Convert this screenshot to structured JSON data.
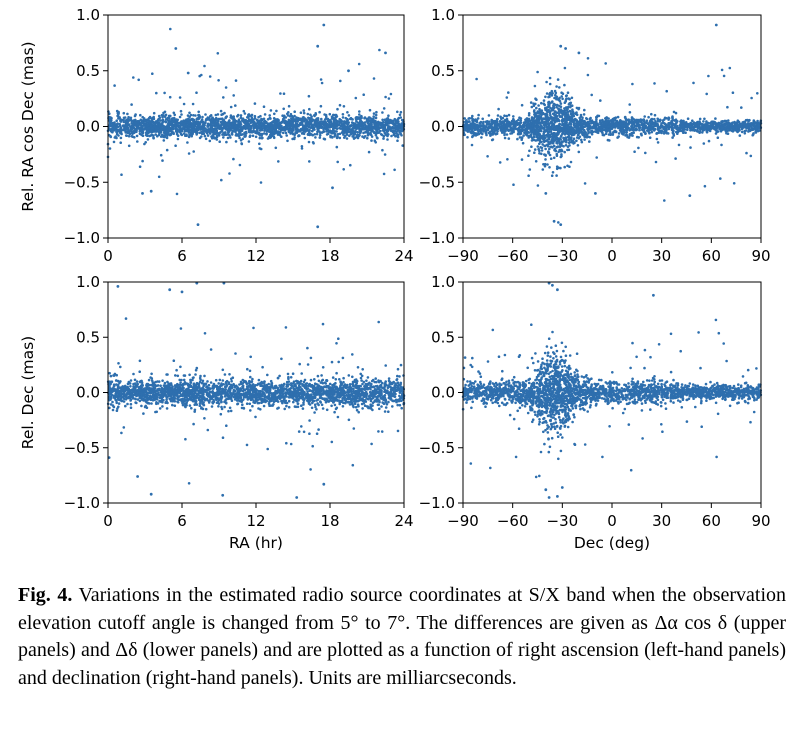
{
  "caption": {
    "label": "Fig. 4.",
    "text": "Variations in the estimated radio source coordinates at S/X band when the observation elevation cutoff angle is changed from 5° to 7°. The differences are given as Δα cos δ (upper panels) and Δδ (lower panels) and are plotted as a function of right ascension (left-hand panels) and declination (right-hand panels). Units are milliarcseconds."
  },
  "chart_data": [
    {
      "id": "ra_vs_ra",
      "type": "scatter",
      "panel": "top-left",
      "xlabel": "",
      "ylabel": "Rel. RA cos Dec (mas)",
      "xlim": [
        0,
        24
      ],
      "ylim": [
        -1.0,
        1.0
      ],
      "xticks": [
        "0",
        "6",
        "12",
        "18",
        "24"
      ],
      "yticks": [
        "−1.0",
        "−0.5",
        "0.0",
        "0.5",
        "1.0"
      ],
      "color": "#2e6fae",
      "points_shown": "several thousand points, dense band at y≈0 with spread ±0.1; notable outliers",
      "outliers": [
        [
          17.5,
          0.91
        ],
        [
          17.0,
          0.72
        ],
        [
          5.5,
          0.7
        ],
        [
          22.5,
          0.66
        ],
        [
          7.3,
          -0.88
        ],
        [
          17.0,
          -0.9
        ],
        [
          2.8,
          -0.6
        ],
        [
          3.5,
          -0.58
        ],
        [
          18.2,
          -0.55
        ],
        [
          6.5,
          0.48
        ],
        [
          19.5,
          0.5
        ]
      ],
      "core_scatter_sigma": 0.05
    },
    {
      "id": "ra_vs_dec",
      "type": "scatter",
      "panel": "top-right",
      "xlabel": "",
      "ylabel": "",
      "xlim": [
        -90,
        90
      ],
      "ylim": [
        -1.0,
        1.0
      ],
      "xticks": [
        "−90",
        "−60",
        "−30",
        "0",
        "30",
        "60",
        "90"
      ],
      "yticks": [
        "−1.0",
        "−0.5",
        "0.0",
        "0.5",
        "1.0"
      ],
      "color": "#2e6fae",
      "points_shown": "dense band at y≈0 from Dec −85 to +88, wider spread near Dec −40 to −25",
      "outliers": [
        [
          63,
          0.91
        ],
        [
          -31,
          0.72
        ],
        [
          -28,
          0.7
        ],
        [
          -20,
          0.66
        ],
        [
          -31,
          -0.88
        ],
        [
          -35,
          -0.85
        ],
        [
          -40,
          -0.6
        ],
        [
          47,
          -0.62
        ],
        [
          -10,
          -0.6
        ]
      ],
      "core_scatter_sigma": 0.04
    },
    {
      "id": "dec_vs_ra",
      "type": "scatter",
      "panel": "bottom-left",
      "xlabel": "RA (hr)",
      "ylabel": "Rel. Dec (mas)",
      "xlim": [
        0,
        24
      ],
      "ylim": [
        -1.0,
        1.0
      ],
      "xticks": [
        "0",
        "6",
        "12",
        "18",
        "24"
      ],
      "yticks": [
        "−1.0",
        "−0.5",
        "0.0",
        "0.5",
        "1.0"
      ],
      "color": "#2e6fae",
      "points_shown": "dense band at y≈0 with spread ±0.15; many outliers to ±1",
      "outliers": [
        [
          7.2,
          0.99
        ],
        [
          9.4,
          0.99
        ],
        [
          0.8,
          0.96
        ],
        [
          5.0,
          0.93
        ],
        [
          6.0,
          0.91
        ],
        [
          3.5,
          -0.92
        ],
        [
          15.3,
          -0.95
        ],
        [
          9.3,
          -0.93
        ],
        [
          17.5,
          -0.83
        ],
        [
          2.4,
          -0.76
        ]
      ],
      "core_scatter_sigma": 0.06
    },
    {
      "id": "dec_vs_dec",
      "type": "scatter",
      "panel": "bottom-right",
      "xlabel": "Dec (deg)",
      "ylabel": "",
      "xlim": [
        -90,
        90
      ],
      "ylim": [
        -1.0,
        1.0
      ],
      "xticks": [
        "−90",
        "−60",
        "−30",
        "0",
        "30",
        "60",
        "90"
      ],
      "yticks": [
        "−1.0",
        "−0.5",
        "0.0",
        "0.5",
        "1.0"
      ],
      "color": "#2e6fae",
      "points_shown": "dense band at y≈0, strong vertical spread near Dec −40 to −30 reaching ±1",
      "outliers": [
        [
          -38,
          0.99
        ],
        [
          -36,
          0.97
        ],
        [
          -33,
          0.93
        ],
        [
          25,
          0.88
        ],
        [
          -38,
          -0.95
        ],
        [
          -33,
          -0.94
        ],
        [
          -40,
          -0.88
        ],
        [
          -30,
          -0.86
        ]
      ],
      "core_scatter_sigma": 0.05
    }
  ]
}
